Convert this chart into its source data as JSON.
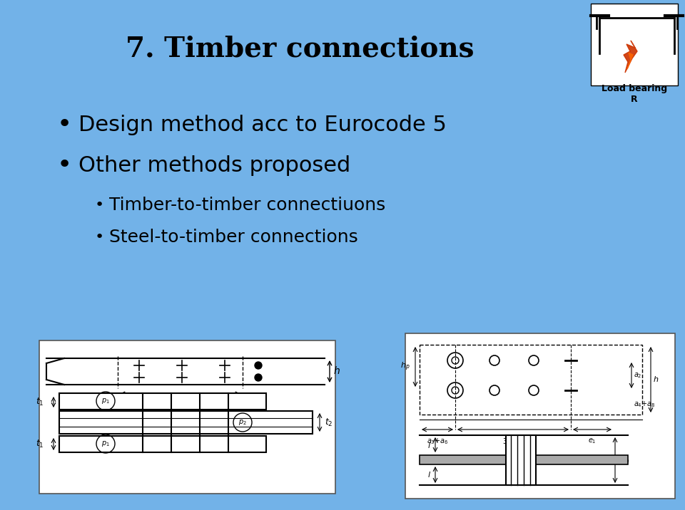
{
  "bg_color": "#72b2e8",
  "title": "7. Timber connections",
  "title_fontsize": 28,
  "title_bold": true,
  "bullet1": "Design method acc to Eurocode 5",
  "bullet2": "Other methods proposed",
  "sub_bullet1": "Timber-to-timber connectiuons",
  "sub_bullet2": "Steel-to-timber connections",
  "bullet_fontsize": 22,
  "sub_bullet_fontsize": 18,
  "icon_label": "Load bearing\nR",
  "diagram_bg": "white"
}
